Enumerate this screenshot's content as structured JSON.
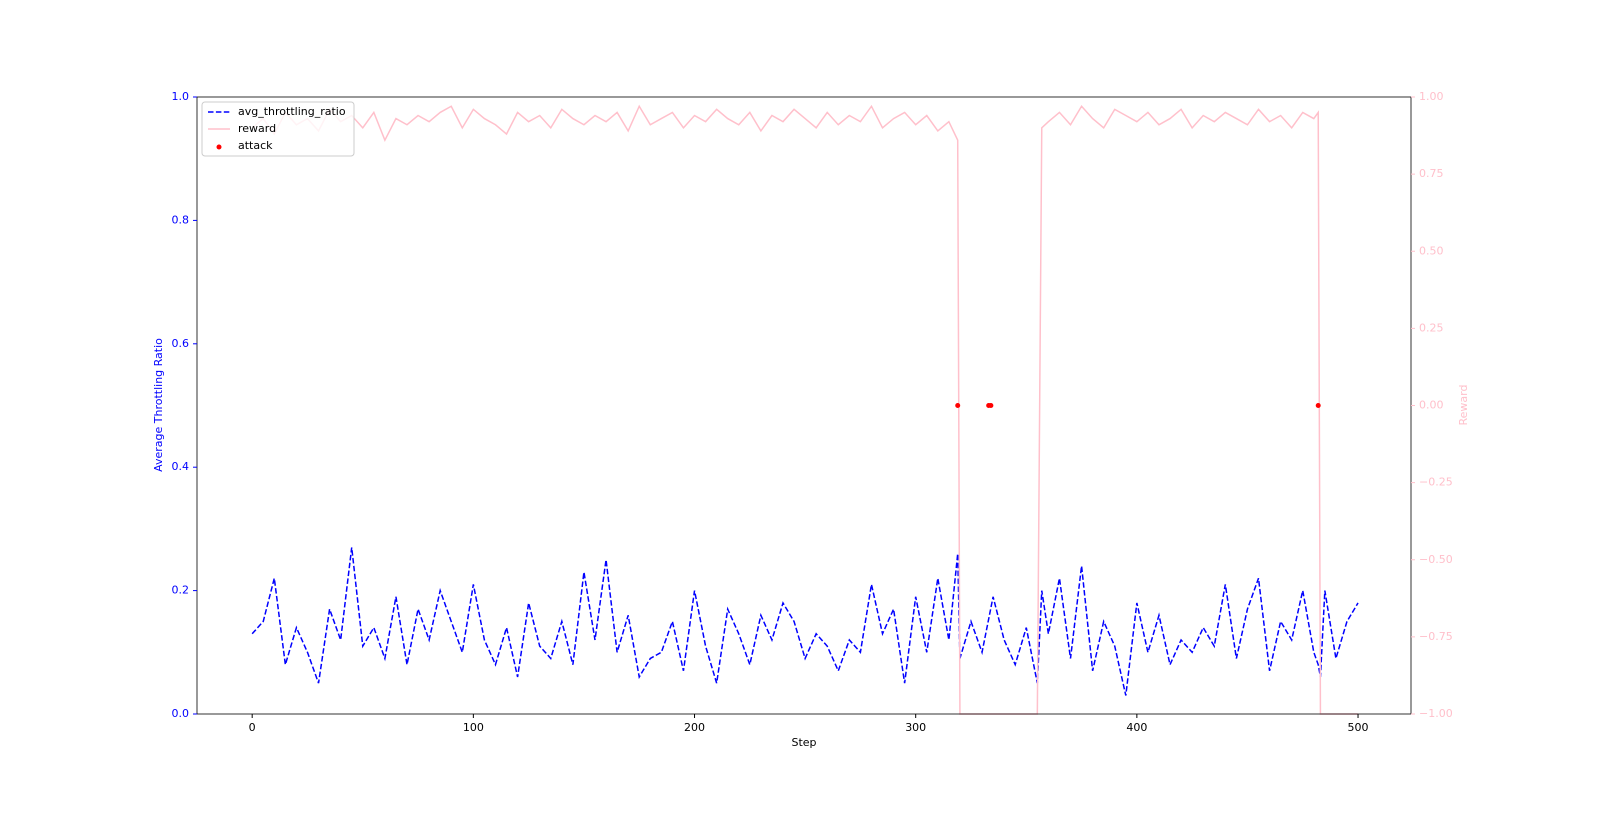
{
  "chart_data": {
    "type": "line",
    "x_label": "Step",
    "y_label": "Average Throttling Ratio",
    "y2_label": "Reward",
    "x": [
      0,
      5,
      10,
      15,
      20,
      25,
      30,
      35,
      40,
      45,
      50,
      55,
      60,
      65,
      70,
      75,
      80,
      85,
      90,
      95,
      100,
      105,
      110,
      115,
      120,
      125,
      130,
      135,
      140,
      145,
      150,
      155,
      160,
      165,
      170,
      175,
      180,
      185,
      190,
      195,
      200,
      205,
      210,
      215,
      220,
      225,
      230,
      235,
      240,
      245,
      250,
      255,
      260,
      265,
      270,
      275,
      280,
      285,
      290,
      295,
      300,
      305,
      310,
      315,
      319,
      320,
      325,
      330,
      335,
      340,
      345,
      350,
      355,
      357,
      360,
      365,
      370,
      375,
      380,
      385,
      390,
      395,
      400,
      405,
      410,
      415,
      420,
      425,
      430,
      435,
      440,
      445,
      450,
      455,
      460,
      465,
      470,
      475,
      480,
      482,
      483,
      485,
      490,
      495,
      500
    ],
    "series": [
      {
        "name": "avg_throttling_ratio",
        "color": "#0000ff",
        "axis": "y",
        "dashed": true,
        "values": [
          0.13,
          0.15,
          0.22,
          0.08,
          0.14,
          0.1,
          0.05,
          0.17,
          0.12,
          0.27,
          0.11,
          0.14,
          0.09,
          0.19,
          0.08,
          0.17,
          0.12,
          0.2,
          0.15,
          0.1,
          0.21,
          0.12,
          0.08,
          0.14,
          0.06,
          0.18,
          0.11,
          0.09,
          0.15,
          0.08,
          0.23,
          0.12,
          0.25,
          0.1,
          0.16,
          0.06,
          0.09,
          0.1,
          0.15,
          0.07,
          0.2,
          0.11,
          0.05,
          0.17,
          0.13,
          0.08,
          0.16,
          0.12,
          0.18,
          0.15,
          0.09,
          0.13,
          0.11,
          0.07,
          0.12,
          0.1,
          0.21,
          0.13,
          0.17,
          0.05,
          0.19,
          0.1,
          0.22,
          0.12,
          0.26,
          0.09,
          0.15,
          0.1,
          0.19,
          0.12,
          0.08,
          0.14,
          0.05,
          0.2,
          0.13,
          0.22,
          0.09,
          0.24,
          0.07,
          0.15,
          0.11,
          0.03,
          0.18,
          0.1,
          0.16,
          0.08,
          0.12,
          0.1,
          0.14,
          0.11,
          0.21,
          0.09,
          0.17,
          0.22,
          0.07,
          0.15,
          0.12,
          0.2,
          0.1,
          0.08,
          0.06,
          0.2,
          0.09,
          0.15,
          0.18
        ]
      },
      {
        "name": "reward",
        "color": "#ffc0cb",
        "axis": "y2",
        "values": [
          0.9,
          0.93,
          0.88,
          0.95,
          0.91,
          0.93,
          0.89,
          0.96,
          0.92,
          0.94,
          0.9,
          0.95,
          0.86,
          0.93,
          0.91,
          0.94,
          0.92,
          0.95,
          0.97,
          0.9,
          0.96,
          0.93,
          0.91,
          0.88,
          0.95,
          0.92,
          0.94,
          0.9,
          0.96,
          0.93,
          0.91,
          0.94,
          0.92,
          0.95,
          0.89,
          0.97,
          0.91,
          0.93,
          0.95,
          0.9,
          0.94,
          0.92,
          0.96,
          0.93,
          0.91,
          0.95,
          0.89,
          0.94,
          0.92,
          0.96,
          0.93,
          0.9,
          0.95,
          0.91,
          0.94,
          0.92,
          0.97,
          0.9,
          0.93,
          0.95,
          0.91,
          0.94,
          0.89,
          0.92,
          0.86,
          -1,
          -1,
          -1,
          -1,
          -1,
          -1,
          -1,
          -1,
          0.9,
          0.92,
          0.95,
          0.91,
          0.97,
          0.93,
          0.9,
          0.96,
          0.94,
          0.92,
          0.95,
          0.91,
          0.93,
          0.96,
          0.9,
          0.94,
          0.92,
          0.95,
          0.93,
          0.91,
          0.96,
          0.92,
          0.94,
          0.9,
          0.95,
          0.93,
          0.95,
          -1,
          -1,
          -1,
          -1,
          -1
        ]
      }
    ],
    "scatter": {
      "name": "attack",
      "color": "#ff0000",
      "axis": "y2",
      "x": [
        319,
        333,
        334,
        482
      ],
      "values": [
        0,
        0,
        0,
        0
      ]
    },
    "xlim": [
      -24.95,
      523.95
    ],
    "xticks": [
      0,
      100,
      200,
      300,
      400,
      500
    ],
    "ylim": [
      0,
      1
    ],
    "yticks": [
      {
        "value": 0,
        "label": "0.0"
      },
      {
        "value": 0.2,
        "label": "0.2"
      },
      {
        "value": 0.4,
        "label": "0.4"
      },
      {
        "value": 0.6,
        "label": "0.6"
      },
      {
        "value": 0.8,
        "label": "0.8"
      },
      {
        "value": 1,
        "label": "1.0"
      }
    ],
    "y2lim": [
      -1,
      1
    ],
    "y2ticks": [
      {
        "value": -1,
        "label": "−1.00"
      },
      {
        "value": -0.75,
        "label": "−0.75"
      },
      {
        "value": -0.5,
        "label": "−0.50"
      },
      {
        "value": -0.25,
        "label": "−0.25"
      },
      {
        "value": 0,
        "label": "0.00"
      },
      {
        "value": 0.25,
        "label": "0.25"
      },
      {
        "value": 0.5,
        "label": "0.50"
      },
      {
        "value": 0.75,
        "label": "0.75"
      },
      {
        "value": 1,
        "label": "1.00"
      }
    ],
    "y_color": "#0000ff",
    "y2_color": "#ffc0cb",
    "legend": "upper left",
    "grid": false
  }
}
